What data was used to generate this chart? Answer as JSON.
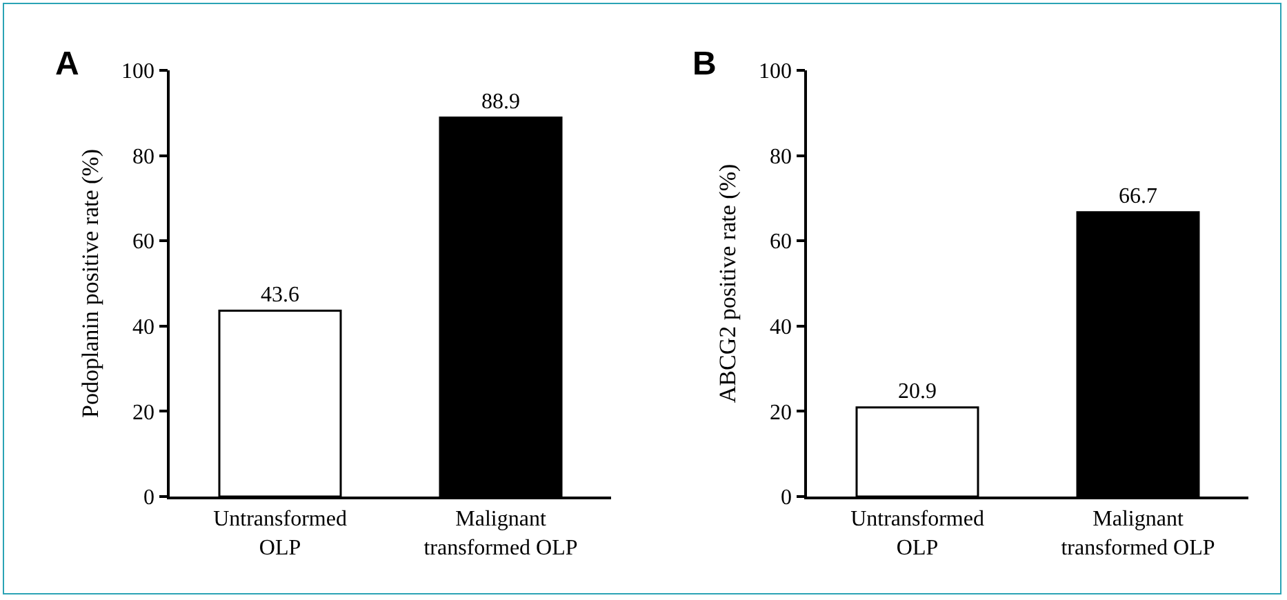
{
  "chart_data": [
    {
      "type": "bar",
      "title": "A",
      "ylabel": "Podoplanin positive rate (%)",
      "categories": [
        "Untransformed\nOLP",
        "Malignant\ntransformed OLP"
      ],
      "values": [
        43.6,
        88.9
      ],
      "colors": [
        "#ffffff",
        "#000000"
      ],
      "ylim": [
        0,
        100
      ],
      "yticks": [
        0,
        20,
        40,
        60,
        80,
        100
      ],
      "data_labels": true,
      "grid": false
    },
    {
      "type": "bar",
      "title": "B",
      "ylabel": "ABCG2 positive rate (%)",
      "categories": [
        "Untransformed\nOLP",
        "Malignant\ntransformed OLP"
      ],
      "values": [
        20.9,
        66.7
      ],
      "colors": [
        "#ffffff",
        "#000000"
      ],
      "ylim": [
        0,
        100
      ],
      "yticks": [
        0,
        20,
        40,
        60,
        80,
        100
      ],
      "data_labels": true,
      "grid": false
    }
  ]
}
